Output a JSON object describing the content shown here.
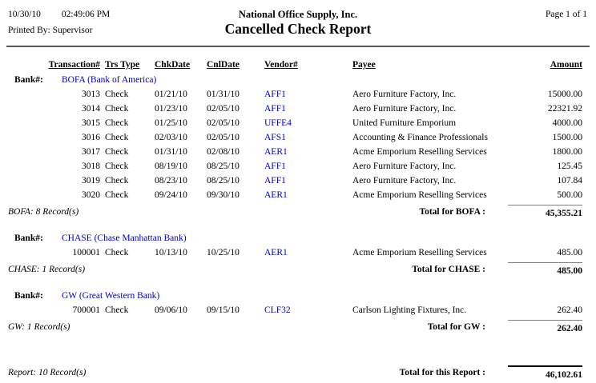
{
  "page": {
    "print_date": "10/30/10",
    "print_time": "02:49:06 PM",
    "company": "National Office Supply, Inc.",
    "page_info": "Page 1 of 1",
    "printed_by_label": "Printed By:",
    "printed_by_value": "Supervisor",
    "title": "Cancelled Check Report"
  },
  "columns": [
    "Transaction#",
    "Trs Type",
    "ChkDate",
    "CnlDate",
    "Vendor#",
    "Payee",
    "Amount"
  ],
  "bank_number_label": "Bank#:",
  "banks": [
    {
      "name": "BOFA (Bank of America)",
      "rows": [
        {
          "transaction": "3013",
          "type": "Check",
          "chk_date": "01/21/10",
          "cnl_date": "01/31/10",
          "vendor": "AFF1",
          "payee": "Aero Furniture Factory, Inc.",
          "amount": "15000.00"
        },
        {
          "transaction": "3014",
          "type": "Check",
          "chk_date": "01/23/10",
          "cnl_date": "02/05/10",
          "vendor": "AFF1",
          "payee": "Aero Furniture Factory, Inc.",
          "amount": "22321.92"
        },
        {
          "transaction": "3015",
          "type": "Check",
          "chk_date": "01/25/10",
          "cnl_date": "02/05/10",
          "vendor": "UFFE4",
          "payee": "United Furniture Emporium",
          "amount": "4000.00"
        },
        {
          "transaction": "3016",
          "type": "Check",
          "chk_date": "02/03/10",
          "cnl_date": "02/05/10",
          "vendor": "AFS1",
          "payee": "Accounting & Finance Professionals",
          "amount": "1500.00"
        },
        {
          "transaction": "3017",
          "type": "Check",
          "chk_date": "01/31/10",
          "cnl_date": "02/08/10",
          "vendor": "AER1",
          "payee": "Acme Emporium Reselling Services",
          "amount": "1800.00"
        },
        {
          "transaction": "3018",
          "type": "Check",
          "chk_date": "08/19/10",
          "cnl_date": "08/25/10",
          "vendor": "AFF1",
          "payee": "Aero Furniture Factory, Inc.",
          "amount": "125.45"
        },
        {
          "transaction": "3019",
          "type": "Check",
          "chk_date": "08/23/10",
          "cnl_date": "08/25/10",
          "vendor": "AFF1",
          "payee": "Aero Furniture Factory, Inc.",
          "amount": "107.84"
        },
        {
          "transaction": "3020",
          "type": "Check",
          "chk_date": "09/24/10",
          "cnl_date": "09/30/10",
          "vendor": "AER1",
          "payee": "Acme Emporium Reselling Services",
          "amount": "500.00"
        }
      ],
      "record_count": "BOFA: 8 Record(s)",
      "total_label": "Total for BOFA :",
      "total": "45,355.21"
    },
    {
      "name": "CHASE (Chase Manhattan Bank)",
      "rows": [
        {
          "transaction": "100001",
          "type": "Check",
          "chk_date": "10/13/10",
          "cnl_date": "10/25/10",
          "vendor": "AER1",
          "payee": "Acme Emporium Reselling Services",
          "amount": "485.00"
        }
      ],
      "record_count": "CHASE: 1 Record(s)",
      "total_label": "Total for CHASE :",
      "total": "485.00"
    },
    {
      "name": "GW (Great Western Bank)",
      "rows": [
        {
          "transaction": "700001",
          "type": "Check",
          "chk_date": "09/06/10",
          "cnl_date": "09/15/10",
          "vendor": "CLF32",
          "payee": "Carlson Lighting Fixtures, Inc.",
          "amount": "262.40"
        }
      ],
      "record_count": "GW: 1 Record(s)",
      "total_label": "Total for GW :",
      "total": "262.40"
    }
  ],
  "report": {
    "record_count": "Report: 10 Record(s)",
    "total_label": "Total for this Report :",
    "total": "46,102.61"
  },
  "colors": {
    "link_blue": "#0000cc",
    "text": "#000000",
    "background": "#ffffff"
  }
}
